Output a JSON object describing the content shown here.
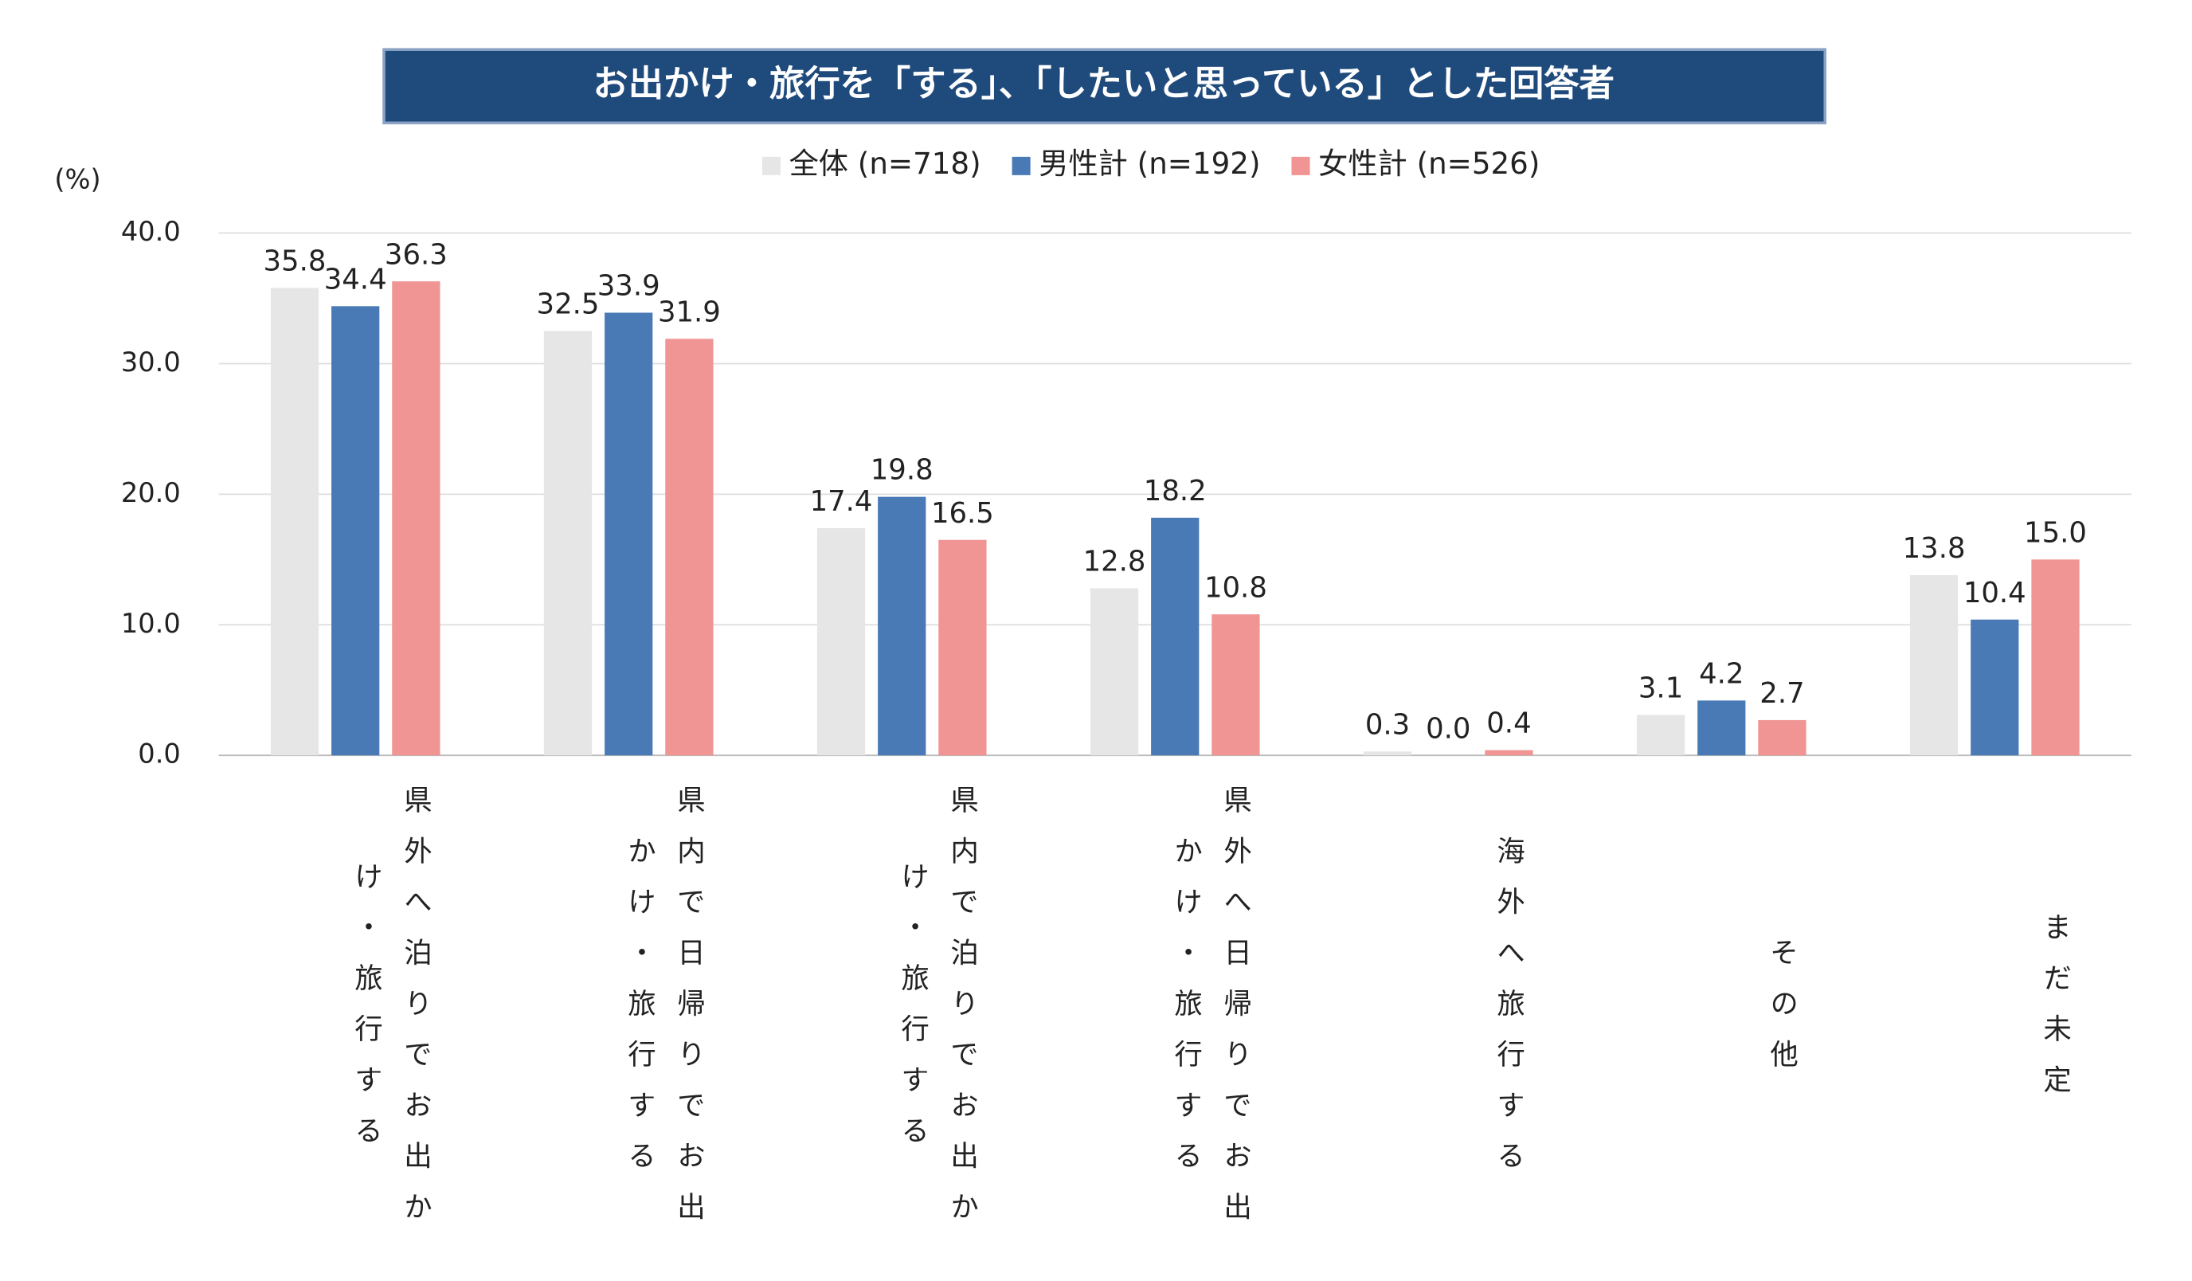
{
  "chart_data": {
    "type": "bar",
    "title": "お出かけ・旅行を「する」、「したいと思っている」とした回答者",
    "y_unit": "(%)",
    "categories": [
      "県外へ泊りでお出かけ・旅行する",
      "県内で日帰りでお出かけ・旅行する",
      "県内で泊りでお出かけ・旅行する",
      "県外へ日帰りでお出かけ・旅行する",
      "海外へ旅行する",
      "その他",
      "まだ未定"
    ],
    "series": [
      {
        "name": "全体 (n=718)",
        "color": "#e6e6e6",
        "values": [
          35.8,
          32.5,
          17.4,
          12.8,
          0.3,
          3.1,
          13.8
        ],
        "value_labels": [
          "35.8",
          "32.5",
          "17.4",
          "12.8",
          "0.3",
          "3.1",
          "13.8"
        ]
      },
      {
        "name": "男性計 (n=192)",
        "color": "#4a7ab5",
        "values": [
          34.4,
          33.9,
          19.8,
          18.2,
          0,
          4.2,
          10.4
        ],
        "value_labels": [
          "34.4",
          "33.9",
          "19.8",
          "18.2",
          "0.0",
          "4.2",
          "10.4"
        ]
      },
      {
        "name": "女性計 (n=526)",
        "color": "#f09494",
        "values": [
          36.3,
          31.9,
          16.5,
          10.8,
          0.4,
          2.7,
          15
        ],
        "value_labels": [
          "36.3",
          "31.9",
          "16.5",
          "10.8",
          "0.4",
          "2.7",
          "15.0"
        ]
      }
    ],
    "ylim": [
      0,
      40
    ],
    "yticks": [
      {
        "value": 0,
        "label": "0.0"
      },
      {
        "value": 10,
        "label": "10.0"
      },
      {
        "value": 20,
        "label": "20.0"
      },
      {
        "value": 30,
        "label": "30.0"
      },
      {
        "value": 40,
        "label": "40.0"
      }
    ],
    "grid": true,
    "legend": "top"
  }
}
